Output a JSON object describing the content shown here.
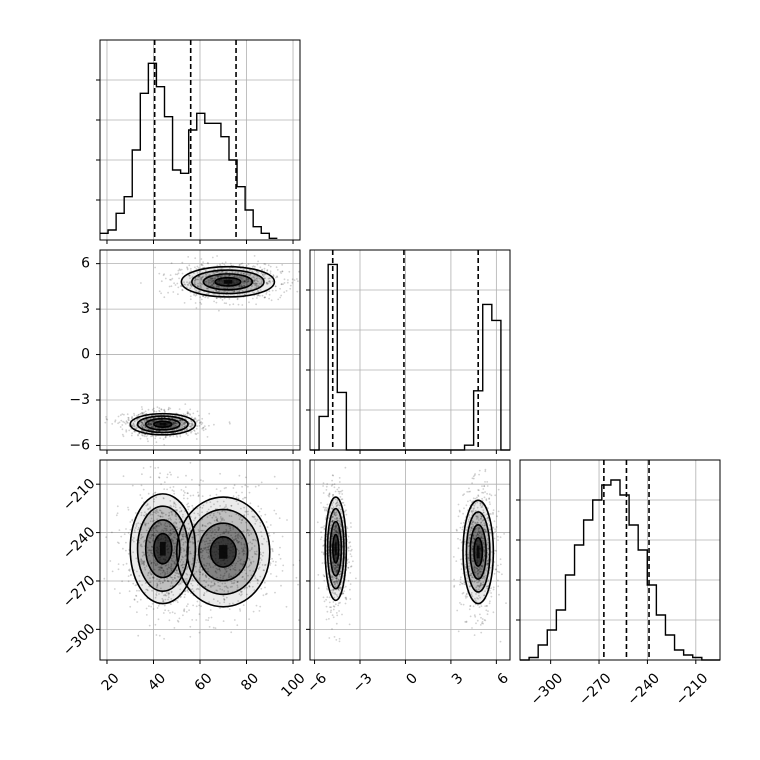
{
  "chart_data": {
    "type": "corner",
    "title": "",
    "variables": [
      {
        "range": [
          17,
          103
        ],
        "ticks": [
          20,
          40,
          60,
          80,
          100
        ],
        "tick_labels": [
          "20",
          "40",
          "60",
          "80",
          "100"
        ]
      },
      {
        "range": [
          -6.3,
          6.9
        ],
        "ticks": [
          -6,
          -3,
          0,
          3,
          6
        ],
        "tick_labels": [
          "−6",
          "−3",
          "0",
          "3",
          "6"
        ]
      },
      {
        "range": [
          -319,
          -195
        ],
        "ticks": [
          -300,
          -270,
          -240,
          -210
        ],
        "tick_labels": [
          "−300",
          "−270",
          "−240",
          "−210"
        ]
      }
    ],
    "histograms": [
      {
        "variable": 0,
        "bin_start": 17,
        "bin_width": 3.4667,
        "counts": [
          20,
          30,
          80,
          130,
          270,
          440,
          530,
          460,
          370,
          210,
          200,
          330,
          380,
          350,
          350,
          310,
          240,
          160,
          90,
          40,
          20,
          5
        ],
        "quantiles": [
          40.5,
          56,
          75.5
        ],
        "ylim": [
          0,
          600
        ]
      },
      {
        "variable": 1,
        "bin_start": -6.3,
        "bin_width": 0.6,
        "counts": [
          0,
          210,
          1160,
          360,
          0,
          0,
          0,
          0,
          0,
          0,
          0,
          0,
          0,
          0,
          0,
          0,
          0,
          30,
          370,
          910,
          810,
          0
        ],
        "quantiles": [
          -4.8,
          -0.1,
          4.8
        ],
        "ylim": [
          0,
          1250
        ]
      },
      {
        "variable": 2,
        "bin_start": -319,
        "bin_width": 5.6364,
        "counts": [
          0,
          5,
          30,
          60,
          100,
          170,
          230,
          280,
          320,
          350,
          360,
          330,
          270,
          220,
          150,
          90,
          50,
          20,
          10,
          5,
          0,
          0
        ],
        "quantiles": [
          -267,
          -253,
          -239
        ],
        "ylim": [
          0,
          400
        ]
      }
    ],
    "scatter_panels": [
      {
        "x_variable": 0,
        "y_variable": 1,
        "clusters": [
          {
            "center": [
              72,
              4.8
            ],
            "spread": [
              10,
              0.5
            ],
            "weight": 0.5
          },
          {
            "center": [
              44,
              -4.6
            ],
            "spread": [
              7,
              0.35
            ],
            "weight": 0.5
          }
        ]
      },
      {
        "x_variable": 0,
        "y_variable": 2,
        "clusters": [
          {
            "center": [
              44,
              -250
            ],
            "spread": [
              7,
              17
            ],
            "weight": 0.5
          },
          {
            "center": [
              70,
              -252
            ],
            "spread": [
              10,
              17
            ],
            "weight": 0.5
          }
        ]
      },
      {
        "x_variable": 1,
        "y_variable": 2,
        "clusters": [
          {
            "center": [
              -4.6,
              -250
            ],
            "spread": [
              0.35,
              16
            ],
            "weight": 0.5
          },
          {
            "center": [
              4.8,
              -252
            ],
            "spread": [
              0.5,
              16
            ],
            "weight": 0.5
          }
        ]
      }
    ],
    "grid": true,
    "legend": "none"
  }
}
